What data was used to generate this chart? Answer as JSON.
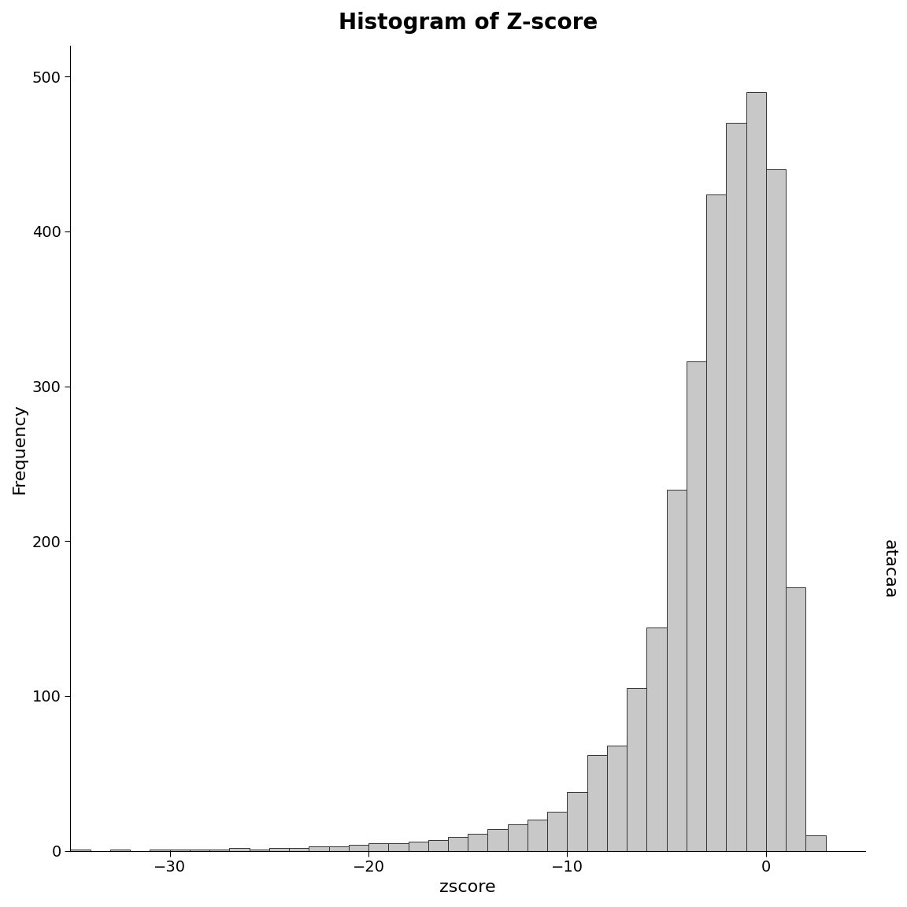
{
  "title": "Histogram of Z-score",
  "xlabel": "zscore",
  "ylabel": "Frequency",
  "annotation": "atacaa",
  "bar_color": "#c8c8c8",
  "bar_edgecolor": "#333333",
  "xlim": [
    -35,
    5
  ],
  "ylim": [
    0,
    520
  ],
  "yticks": [
    0,
    100,
    200,
    300,
    400,
    500
  ],
  "xticks": [
    -30,
    -20,
    -10,
    0
  ],
  "title_fontsize": 20,
  "axis_label_fontsize": 16,
  "tick_fontsize": 14,
  "bin_edges": [
    -35,
    -34,
    -33,
    -32,
    -31,
    -30,
    -29,
    -28,
    -27,
    -26,
    -25,
    -24,
    -23,
    -22,
    -21,
    -20,
    -19,
    -18,
    -17,
    -16,
    -15,
    -14,
    -13,
    -12,
    -11,
    -10,
    -9,
    -8,
    -7,
    -6,
    -5,
    -4,
    -3,
    -2,
    -1,
    0,
    1,
    2
  ],
  "counts": [
    1,
    0,
    1,
    0,
    1,
    1,
    1,
    1,
    2,
    1,
    2,
    2,
    3,
    3,
    4,
    5,
    5,
    6,
    7,
    9,
    11,
    14,
    17,
    20,
    25,
    38,
    62,
    68,
    105,
    144,
    233,
    316,
    424,
    470,
    490,
    440,
    170,
    10
  ]
}
